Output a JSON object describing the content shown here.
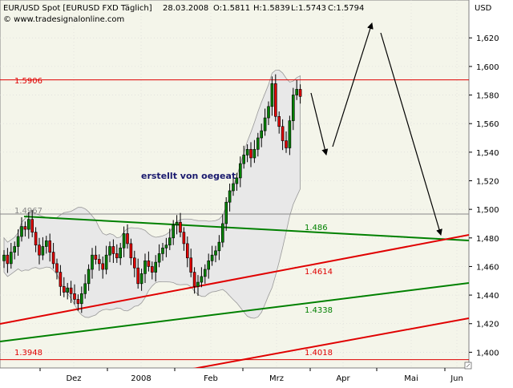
{
  "header": {
    "instrument": "EUR/USD Spot [EURUSD FXD  Täglich]",
    "date": "28.03.2008",
    "open_label": "O:1.5811",
    "high_label": "H:1.5839",
    "low_label": "L:1.5743",
    "close_label": "C:1.5794",
    "source": "© www.tradesignalonline.com"
  },
  "annotation": "erstellt von oegeat",
  "colors": {
    "plot_bg": "#f4f5ea",
    "grid": "#d8d8d8",
    "red": "#e00000",
    "green": "#008000",
    "text_dark": "#1a1a6e",
    "ghost": "#888888"
  },
  "chart_data": {
    "type": "candlestick",
    "y_axis_title": "USD",
    "ylim": [
      1.389,
      1.6465
    ],
    "y_ticks": [
      1.4,
      1.42,
      1.44,
      1.46,
      1.48,
      1.5,
      1.52,
      1.54,
      1.56,
      1.58,
      1.6,
      1.62
    ],
    "y_tick_labels": [
      "1,400",
      "1,420",
      "1,440",
      "1,460",
      "1,480",
      "1,500",
      "1,520",
      "1,540",
      "1,560",
      "1,580",
      "1,600",
      "1,620"
    ],
    "x_tick_labels": [
      "Dez",
      "2008",
      "Feb",
      "Mrz",
      "Apr",
      "Mai",
      "Jun"
    ],
    "grid": true,
    "closes": [
      1.468,
      1.462,
      1.47,
      1.474,
      1.481,
      1.488,
      1.486,
      1.493,
      1.484,
      1.475,
      1.468,
      1.474,
      1.478,
      1.47,
      1.462,
      1.456,
      1.446,
      1.442,
      1.445,
      1.441,
      1.437,
      1.434,
      1.441,
      1.448,
      1.458,
      1.468,
      1.465,
      1.462,
      1.458,
      1.468,
      1.474,
      1.469,
      1.466,
      1.473,
      1.483,
      1.476,
      1.466,
      1.459,
      1.448,
      1.455,
      1.464,
      1.46,
      1.456,
      1.463,
      1.469,
      1.473,
      1.475,
      1.48,
      1.489,
      1.491,
      1.484,
      1.476,
      1.466,
      1.456,
      1.446,
      1.449,
      1.453,
      1.458,
      1.464,
      1.468,
      1.471,
      1.477,
      1.49,
      1.505,
      1.513,
      1.518,
      1.522,
      1.532,
      1.538,
      1.542,
      1.536,
      1.542,
      1.55,
      1.555,
      1.564,
      1.572,
      1.588,
      1.565,
      1.558,
      1.548,
      1.543,
      1.562,
      1.58,
      1.584,
      1.579
    ],
    "horizontal_levels": [
      {
        "value": 1.5906,
        "label": "1.5906",
        "color": "#e00000"
      },
      {
        "value": 1.4967,
        "label": "1.4967",
        "color": "#888888"
      },
      {
        "value": 1.3948,
        "label": "1.3948",
        "color": "#e00000"
      }
    ],
    "trendline_labels": [
      {
        "label": "1.486",
        "color": "#008000"
      },
      {
        "label": "1.4614",
        "color": "#e00000"
      },
      {
        "label": "1.4338",
        "color": "#008000"
      },
      {
        "label": "1.4018",
        "color": "#e00000"
      }
    ]
  }
}
